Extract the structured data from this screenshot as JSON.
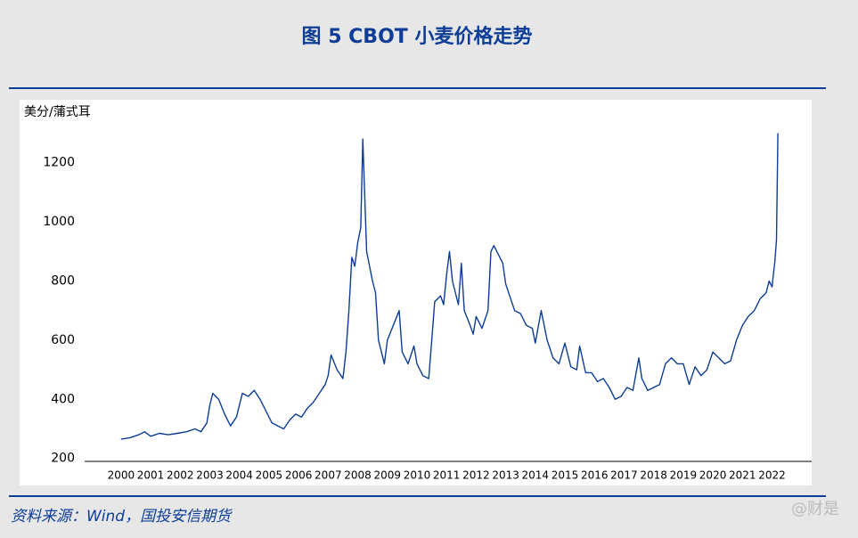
{
  "chart_data": {
    "type": "line",
    "title": "图 5 CBOT 小麦价格走势",
    "y_label": "美分/蒲式耳",
    "source": "资料来源：Wind，国投安信期货",
    "watermark": "@财是",
    "color": "#0d3d96",
    "x": [
      2000.0,
      2000.3,
      2000.6,
      2000.8,
      2001.0,
      2001.3,
      2001.6,
      2001.9,
      2002.2,
      2002.5,
      2002.7,
      2002.9,
      2003.0,
      2003.1,
      2003.3,
      2003.5,
      2003.7,
      2003.9,
      2004.0,
      2004.1,
      2004.3,
      2004.5,
      2004.7,
      2004.9,
      2005.1,
      2005.3,
      2005.5,
      2005.7,
      2005.9,
      2006.1,
      2006.3,
      2006.5,
      2006.7,
      2006.9,
      2007.0,
      2007.1,
      2007.3,
      2007.5,
      2007.6,
      2007.7,
      2007.8,
      2007.9,
      2008.0,
      2008.1,
      2008.17,
      2008.3,
      2008.5,
      2008.6,
      2008.7,
      2008.8,
      2008.9,
      2009.0,
      2009.2,
      2009.4,
      2009.5,
      2009.7,
      2009.9,
      2010.0,
      2010.2,
      2010.4,
      2010.5,
      2010.6,
      2010.8,
      2010.9,
      2011.0,
      2011.1,
      2011.2,
      2011.4,
      2011.5,
      2011.6,
      2011.8,
      2011.9,
      2012.0,
      2012.2,
      2012.4,
      2012.5,
      2012.6,
      2012.8,
      2012.9,
      2013.0,
      2013.3,
      2013.5,
      2013.7,
      2013.9,
      2014.0,
      2014.2,
      2014.4,
      2014.6,
      2014.8,
      2015.0,
      2015.2,
      2015.4,
      2015.5,
      2015.7,
      2015.9,
      2016.1,
      2016.3,
      2016.5,
      2016.7,
      2016.9,
      2017.1,
      2017.3,
      2017.5,
      2017.6,
      2017.8,
      2018.0,
      2018.2,
      2018.4,
      2018.6,
      2018.8,
      2019.0,
      2019.2,
      2019.4,
      2019.6,
      2019.8,
      2020.0,
      2020.2,
      2020.4,
      2020.6,
      2020.8,
      2021.0,
      2021.2,
      2021.4,
      2021.6,
      2021.8,
      2021.9,
      2022.0,
      2022.1,
      2022.15,
      2022.2
    ],
    "values": [
      265,
      270,
      280,
      290,
      275,
      285,
      280,
      285,
      290,
      300,
      290,
      320,
      380,
      420,
      400,
      350,
      310,
      340,
      380,
      420,
      410,
      430,
      400,
      360,
      320,
      310,
      300,
      330,
      350,
      340,
      370,
      390,
      420,
      450,
      480,
      550,
      500,
      470,
      560,
      700,
      880,
      850,
      930,
      980,
      1280,
      900,
      800,
      760,
      600,
      560,
      520,
      600,
      650,
      700,
      560,
      520,
      580,
      520,
      480,
      470,
      600,
      730,
      750,
      720,
      820,
      900,
      800,
      720,
      860,
      700,
      650,
      620,
      680,
      640,
      700,
      900,
      920,
      880,
      860,
      790,
      700,
      690,
      650,
      640,
      590,
      700,
      600,
      540,
      520,
      590,
      510,
      500,
      580,
      490,
      490,
      460,
      470,
      440,
      400,
      410,
      440,
      430,
      540,
      470,
      430,
      440,
      450,
      520,
      540,
      520,
      520,
      450,
      510,
      480,
      500,
      560,
      540,
      520,
      530,
      600,
      650,
      680,
      700,
      740,
      760,
      800,
      780,
      870,
      940,
      1300
    ],
    "xlim": [
      1998.77,
      2023.34
    ],
    "xticks": [
      2000,
      2001,
      2002,
      2003,
      2004,
      2005,
      2006,
      2007,
      2008,
      2009,
      2010,
      2011,
      2012,
      2013,
      2014,
      2015,
      2016,
      2017,
      2018,
      2019,
      2020,
      2021,
      2022
    ],
    "ylim": [
      190,
      1400
    ],
    "yticks": [
      200,
      400,
      600,
      800,
      1000,
      1200
    ]
  }
}
